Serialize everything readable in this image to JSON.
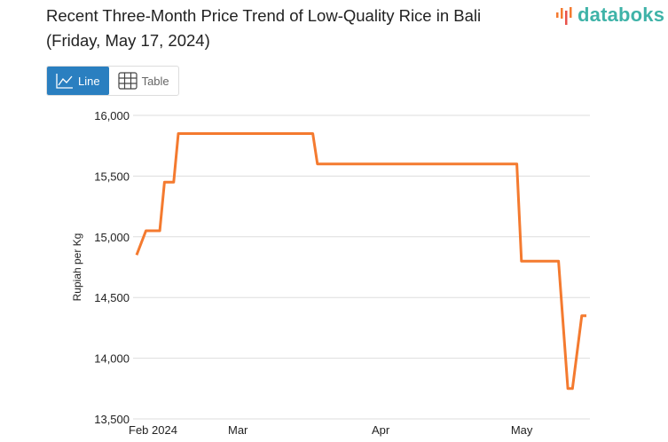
{
  "title_line1": "Recent Three-Month Price Trend of Low-Quality Rice in Bali",
  "title_line2": "(Friday, May 17, 2024)",
  "logo": "databoks",
  "tabs": [
    {
      "label": "Line",
      "icon": "line-chart-icon",
      "active": true
    },
    {
      "label": "Table",
      "icon": "table-icon",
      "active": false
    }
  ],
  "colors": {
    "line": "#f47a2f",
    "active_tab": "#2a7fc0",
    "logo": "#3fb3a8"
  },
  "chart_data": {
    "type": "line",
    "ylabel": "Rupiah per Kg",
    "ylim": [
      13500,
      16000
    ],
    "yticks": [
      13500,
      14000,
      14500,
      15000,
      15500,
      16000
    ],
    "ytick_labels": [
      "13,500",
      "14,000",
      "14,500",
      "15,000",
      "15,500",
      "16,000"
    ],
    "xticks": [
      {
        "date": "2024-02-01",
        "label": "Feb 2024"
      },
      {
        "date": "2024-03-01",
        "label": "Mar"
      },
      {
        "date": "2024-04-01",
        "label": "Apr"
      },
      {
        "date": "2024-05-01",
        "label": "May"
      }
    ],
    "grid": true,
    "series": [
      {
        "values": [
          [
            "2024-02-08",
            14850
          ],
          [
            "2024-02-10",
            15050
          ],
          [
            "2024-02-13",
            15050
          ],
          [
            "2024-02-14",
            15450
          ],
          [
            "2024-02-16",
            15450
          ],
          [
            "2024-02-17",
            15850
          ],
          [
            "2024-03-17",
            15850
          ],
          [
            "2024-03-18",
            15600
          ],
          [
            "2024-04-30",
            15600
          ],
          [
            "2024-05-01",
            14800
          ],
          [
            "2024-05-09",
            14800
          ],
          [
            "2024-05-11",
            13750
          ],
          [
            "2024-05-12",
            13750
          ],
          [
            "2024-05-14",
            14350
          ],
          [
            "2024-05-15",
            14350
          ]
        ]
      }
    ]
  }
}
